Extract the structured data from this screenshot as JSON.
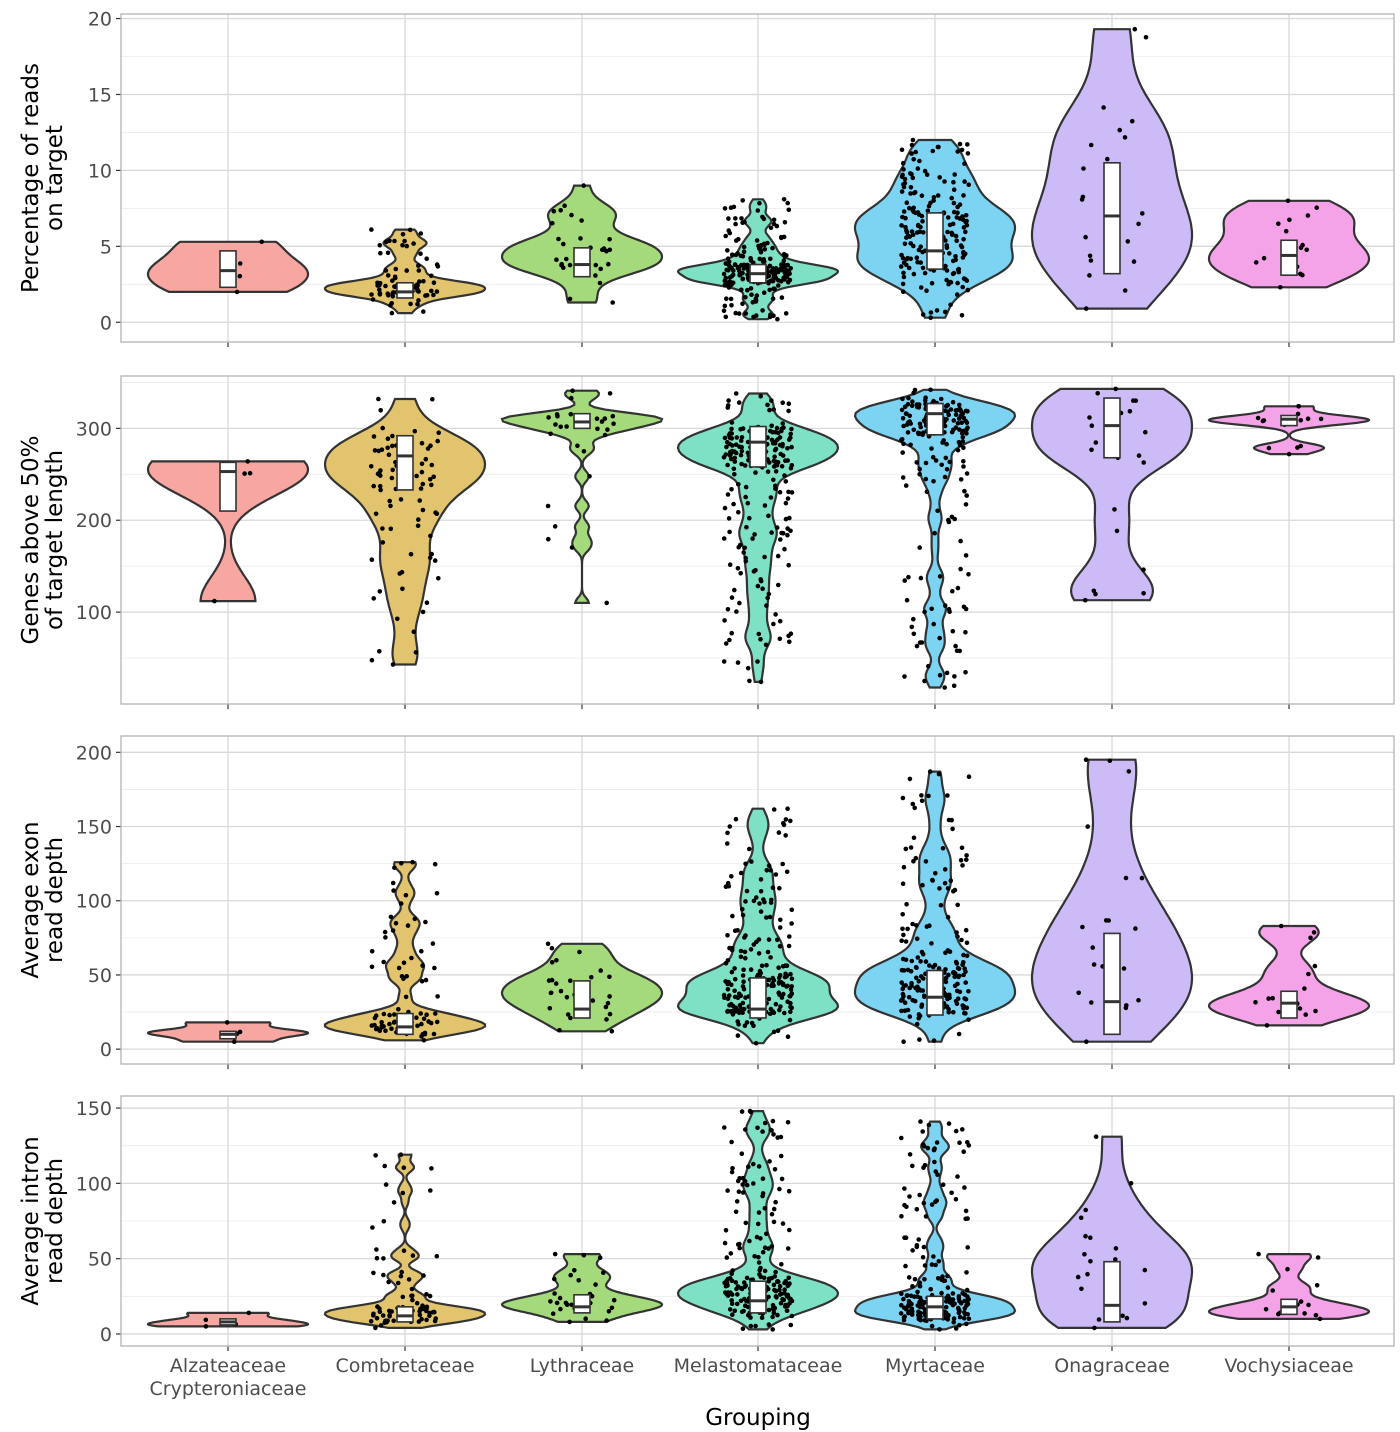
{
  "chart_data": {
    "type": "violin",
    "xlabel": "Grouping",
    "categories": [
      "Alzateaceae\nCrypteroniaceae",
      "Combretaceae",
      "Lythraceae",
      "Melastomataceae",
      "Myrtaceae",
      "Onagraceae",
      "Vochysiaceae"
    ],
    "colors": [
      "#F8A6A1",
      "#E2C46E",
      "#A4D97C",
      "#7EE0C4",
      "#7DD3F2",
      "#CDBBF7",
      "#F5A3E9"
    ],
    "point_counts": [
      4,
      80,
      30,
      220,
      200,
      22,
      15
    ],
    "panels": [
      {
        "ylabel": "Percentage of reads\non target",
        "ylim": [
          -1.3,
          20.3
        ],
        "yticks": [
          0,
          5,
          10,
          15,
          20
        ],
        "groups": [
          {
            "min": 2.0,
            "q1": 2.3,
            "median": 3.4,
            "q3": 4.7,
            "max": 5.3
          },
          {
            "min": 0.6,
            "q1": 1.6,
            "median": 2.0,
            "q3": 2.6,
            "max": 6.1
          },
          {
            "min": 1.3,
            "q1": 3.0,
            "median": 3.8,
            "q3": 4.9,
            "max": 9.0
          },
          {
            "min": 0.2,
            "q1": 2.6,
            "median": 3.2,
            "q3": 3.8,
            "max": 8.1
          },
          {
            "min": 0.3,
            "q1": 3.5,
            "median": 4.7,
            "q3": 7.2,
            "max": 12.0
          },
          {
            "min": 0.9,
            "q1": 3.2,
            "median": 7.0,
            "q3": 10.5,
            "max": 19.3
          },
          {
            "min": 2.3,
            "q1": 3.1,
            "median": 4.4,
            "q3": 5.4,
            "max": 8.0
          }
        ]
      },
      {
        "ylabel": "Genes above 50%\nof target length",
        "ylim": [
          0,
          357
        ],
        "yticks": [
          100,
          200,
          300
        ],
        "groups": [
          {
            "min": 112,
            "q1": 210,
            "median": 253,
            "q3": 263,
            "max": 264
          },
          {
            "min": 43,
            "q1": 233,
            "median": 270,
            "q3": 292,
            "max": 332
          },
          {
            "min": 110,
            "q1": 300,
            "median": 307,
            "q3": 316,
            "max": 341
          },
          {
            "min": 24,
            "q1": 258,
            "median": 285,
            "q3": 302,
            "max": 338
          },
          {
            "min": 18,
            "q1": 293,
            "median": 316,
            "q3": 327,
            "max": 342
          },
          {
            "min": 113,
            "q1": 268,
            "median": 303,
            "q3": 333,
            "max": 343
          },
          {
            "min": 272,
            "q1": 303,
            "median": 310,
            "q3": 314,
            "max": 324
          }
        ]
      },
      {
        "ylabel": "Average exon\nread depth",
        "ylim": [
          -10,
          211
        ],
        "yticks": [
          0,
          50,
          100,
          150,
          200
        ],
        "groups": [
          {
            "min": 5,
            "q1": 7,
            "median": 10,
            "q3": 12,
            "max": 18
          },
          {
            "min": 6,
            "q1": 10,
            "median": 15,
            "q3": 24,
            "max": 126
          },
          {
            "min": 12,
            "q1": 21,
            "median": 27,
            "q3": 46,
            "max": 71
          },
          {
            "min": 4,
            "q1": 21,
            "median": 27,
            "q3": 48,
            "max": 162
          },
          {
            "min": 5,
            "q1": 23,
            "median": 35,
            "q3": 53,
            "max": 187
          },
          {
            "min": 5,
            "q1": 10,
            "median": 32,
            "q3": 78,
            "max": 195
          },
          {
            "min": 16,
            "q1": 21,
            "median": 31,
            "q3": 39,
            "max": 83
          }
        ]
      },
      {
        "ylabel": "Average intron\nread depth",
        "ylim": [
          -8,
          158
        ],
        "yticks": [
          0,
          50,
          100,
          150
        ],
        "groups": [
          {
            "min": 5,
            "q1": 6,
            "median": 8,
            "q3": 10,
            "max": 14
          },
          {
            "min": 4,
            "q1": 8,
            "median": 12,
            "q3": 18,
            "max": 119
          },
          {
            "min": 8,
            "q1": 14,
            "median": 18,
            "q3": 26,
            "max": 53
          },
          {
            "min": 3,
            "q1": 14,
            "median": 22,
            "q3": 35,
            "max": 148
          },
          {
            "min": 3,
            "q1": 10,
            "median": 18,
            "q3": 25,
            "max": 141
          },
          {
            "min": 4,
            "q1": 8,
            "median": 19,
            "q3": 48,
            "max": 131
          },
          {
            "min": 10,
            "q1": 13,
            "median": 18,
            "q3": 23,
            "max": 53
          }
        ]
      }
    ]
  }
}
